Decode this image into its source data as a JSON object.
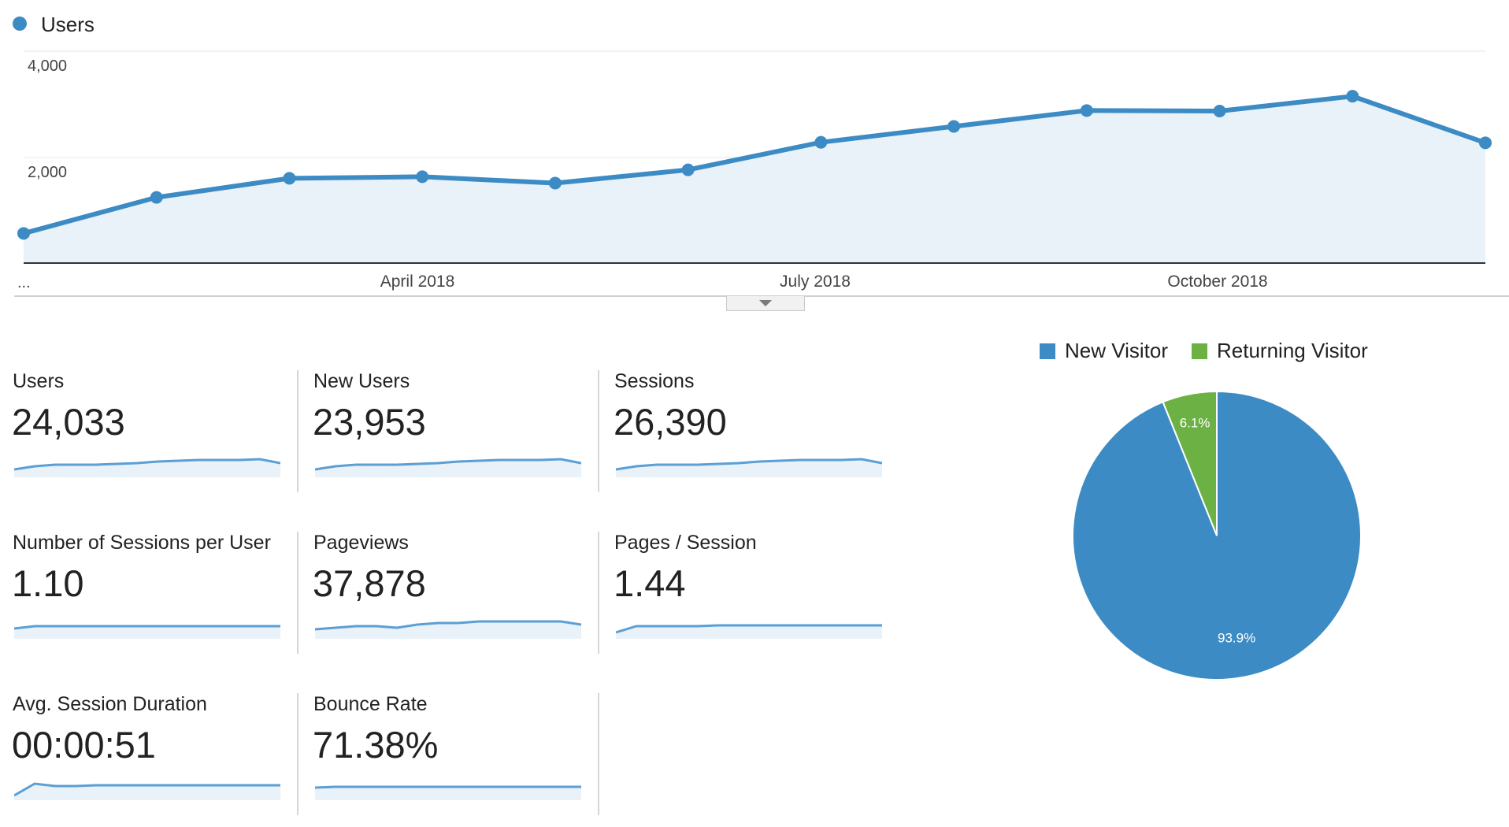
{
  "colors": {
    "primary": "#3d8bc4",
    "area_fill": "#e9f1f9",
    "secondary": "#6bb144"
  },
  "chart_data": [
    {
      "type": "area",
      "legend": "Users",
      "legend_icon": "circle",
      "y_ticks": [
        "4,000",
        "2,000"
      ],
      "x_labels": [
        "...",
        "April 2018",
        "July 2018",
        "October 2018"
      ],
      "ylim": [
        0,
        4000
      ],
      "grid": true,
      "series": [
        {
          "name": "Users",
          "values": [
            560,
            1240,
            1600,
            1630,
            1510,
            1760,
            2280,
            2580,
            2880,
            2870,
            3150,
            2270
          ]
        }
      ]
    },
    {
      "type": "pie",
      "legend": [
        {
          "label": "New Visitor",
          "color": "#3d8bc4"
        },
        {
          "label": "Returning Visitor",
          "color": "#6bb144"
        }
      ],
      "slices": [
        {
          "label": "New Visitor",
          "value": 93.9,
          "display": "93.9%",
          "color": "#3d8bc4"
        },
        {
          "label": "Returning Visitor",
          "value": 6.1,
          "display": "6.1%",
          "color": "#6bb144"
        }
      ]
    }
  ],
  "metrics": [
    {
      "label": "Users",
      "value": "24,033",
      "spark": [
        8,
        4,
        2,
        2,
        2,
        1,
        0,
        -2,
        -3,
        -4,
        -4,
        -4,
        -5,
        0
      ]
    },
    {
      "label": "New Users",
      "value": "23,953",
      "spark": [
        8,
        4,
        2,
        2,
        2,
        1,
        0,
        -2,
        -3,
        -4,
        -4,
        -4,
        -5,
        0
      ]
    },
    {
      "label": "Sessions",
      "value": "26,390",
      "spark": [
        8,
        4,
        2,
        2,
        2,
        1,
        0,
        -2,
        -3,
        -4,
        -4,
        -4,
        -5,
        0
      ]
    },
    {
      "label": "Number of Sessions per User",
      "value": "1.10",
      "spark": [
        5,
        2,
        2,
        2,
        2,
        2,
        2,
        2,
        2,
        2,
        2,
        2,
        2,
        2
      ]
    },
    {
      "label": "Pageviews",
      "value": "37,878",
      "spark": [
        6,
        4,
        2,
        2,
        4,
        0,
        -2,
        -2,
        -4,
        -4,
        -4,
        -4,
        -4,
        0
      ]
    },
    {
      "label": "Pages / Session",
      "value": "1.44",
      "spark": [
        10,
        2,
        2,
        2,
        2,
        1,
        1,
        1,
        1,
        1,
        1,
        1,
        1,
        1
      ]
    },
    {
      "label": "Avg. Session Duration",
      "value": "00:00:51",
      "spark": [
        12,
        -3,
        0,
        0,
        -1,
        -1,
        -1,
        -1,
        -1,
        -1,
        -1,
        -1,
        -1,
        -1
      ]
    },
    {
      "label": "Bounce Rate",
      "value": "71.38%",
      "spark": [
        2,
        1,
        1,
        1,
        1,
        1,
        1,
        1,
        1,
        1,
        1,
        1,
        1,
        1
      ]
    }
  ]
}
